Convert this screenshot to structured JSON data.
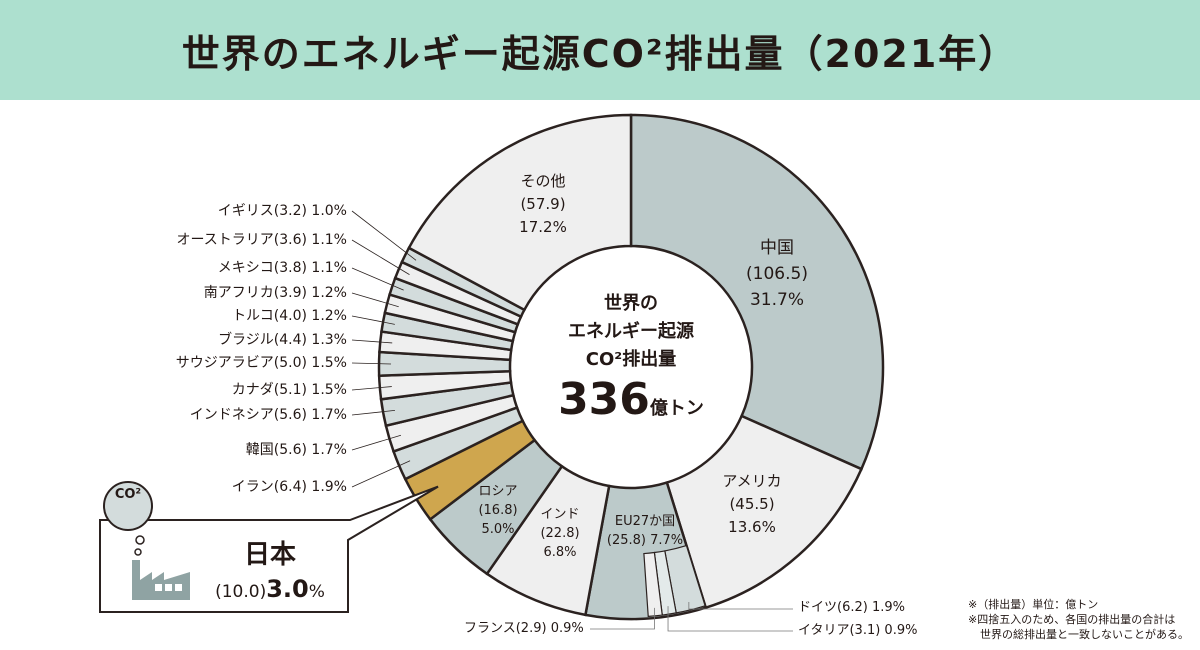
{
  "title": "世界のエネルギー起源CO²排出量（2021年）",
  "center": {
    "line1": "世界の",
    "line2": "エネルギー起源",
    "line3": "CO²排出量",
    "total": "336",
    "unit": "億トン"
  },
  "notes": [
    "※（排出量）単位：億トン",
    "※四捨五入のため、各国の排出量の合計は",
    "世界の総排出量と一致しないことがある。"
  ],
  "japan_callout": {
    "name": "日本",
    "value": "(10.0)",
    "pct": "3.0",
    "pct_unit": "%",
    "bubble": "CO²"
  },
  "colors": {
    "dark": "#bccaca",
    "light": "#efefef",
    "mid": "#d3dcdc",
    "japan": "#cfa64e",
    "header": "#ade0cf",
    "stroke": "#2b2220"
  },
  "chart_data": {
    "type": "pie",
    "title": "世界のエネルギー起源CO²排出量（2021年）",
    "unit": "億トン",
    "slices": [
      {
        "name": "中国",
        "value": 106.5,
        "pct": 31.7,
        "label": "中国",
        "vlabel": "(106.5)",
        "plabel": "31.7%"
      },
      {
        "name": "アメリカ",
        "value": 45.5,
        "pct": 13.6,
        "label": "アメリカ",
        "vlabel": "(45.5)",
        "plabel": "13.6%"
      },
      {
        "name": "EU27か国",
        "value": 25.8,
        "pct": 7.7,
        "label": "EU27か国",
        "vlabel": "(25.8) 7.7%"
      },
      {
        "name": "インド",
        "value": 22.8,
        "pct": 6.8,
        "label": "インド",
        "vlabel": "(22.8)",
        "plabel": "6.8%"
      },
      {
        "name": "ロシア",
        "value": 16.8,
        "pct": 5.0,
        "label": "ロシア",
        "vlabel": "(16.8)",
        "plabel": "5.0%"
      },
      {
        "name": "日本",
        "value": 10.0,
        "pct": 3.0
      },
      {
        "name": "イラン",
        "value": 6.4,
        "pct": 1.9,
        "label": "イラン(6.4) 1.9%"
      },
      {
        "name": "韓国",
        "value": 5.6,
        "pct": 1.7,
        "label": "韓国(5.6) 1.7%"
      },
      {
        "name": "インドネシア",
        "value": 5.6,
        "pct": 1.7,
        "label": "インドネシア(5.6) 1.7%"
      },
      {
        "name": "カナダ",
        "value": 5.1,
        "pct": 1.5,
        "label": "カナダ(5.1) 1.5%"
      },
      {
        "name": "サウジアラビア",
        "value": 5.0,
        "pct": 1.5,
        "label": "サウジアラビア(5.0) 1.5%"
      },
      {
        "name": "ブラジル",
        "value": 4.4,
        "pct": 1.3,
        "label": "ブラジル(4.4) 1.3%"
      },
      {
        "name": "トルコ",
        "value": 4.0,
        "pct": 1.2,
        "label": "トルコ(4.0) 1.2%"
      },
      {
        "name": "南アフリカ",
        "value": 3.9,
        "pct": 1.2,
        "label": "南アフリカ(3.9) 1.2%"
      },
      {
        "name": "メキシコ",
        "value": 3.8,
        "pct": 1.1,
        "label": "メキシコ(3.8) 1.1%"
      },
      {
        "name": "オーストラリア",
        "value": 3.6,
        "pct": 1.1,
        "label": "オーストラリア(3.6) 1.1%"
      },
      {
        "name": "イギリス",
        "value": 3.2,
        "pct": 1.0,
        "label": "イギリス(3.2) 1.0%"
      },
      {
        "name": "その他",
        "value": 57.9,
        "pct": 17.2,
        "label": "その他",
        "vlabel": "(57.9)",
        "plabel": "17.2%"
      }
    ],
    "eu_breakdown": [
      {
        "name": "ドイツ",
        "value": 6.2,
        "pct": 1.9,
        "label": "ドイツ(6.2) 1.9%"
      },
      {
        "name": "イタリア",
        "value": 3.1,
        "pct": 0.9,
        "label": "イタリア(3.1) 0.9%"
      },
      {
        "name": "フランス",
        "value": 2.9,
        "pct": 0.9,
        "label": "フランス(2.9) 0.9%"
      }
    ]
  }
}
